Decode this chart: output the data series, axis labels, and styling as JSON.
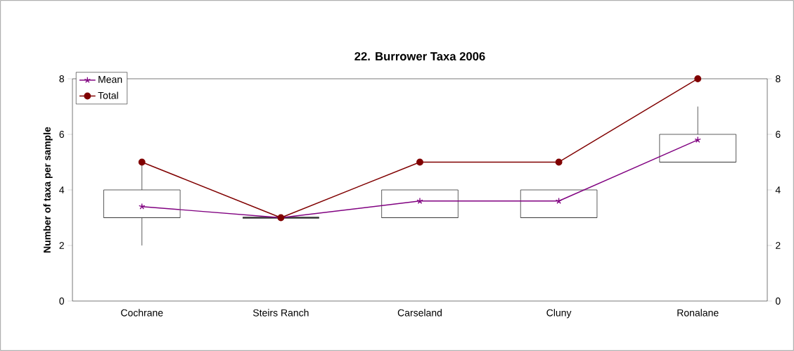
{
  "chart_data": {
    "type": "box",
    "title": "22.  Burrower Taxa 2006",
    "ylabel": "Number of taxa per sample",
    "categories": [
      "Cochrane",
      "Steirs Ranch",
      "Carseland",
      "Cluny",
      "Ronalane"
    ],
    "boxes": [
      {
        "low": 2,
        "q1": 3,
        "median": 3,
        "q3": 4,
        "high": 5
      },
      {
        "low": 3,
        "q1": 3,
        "median": 3,
        "q3": 3,
        "high": 3
      },
      {
        "low": 3,
        "q1": 3,
        "median": 3,
        "q3": 4,
        "high": 4
      },
      {
        "low": 3,
        "q1": 3,
        "median": 3,
        "q3": 4,
        "high": 4
      },
      {
        "low": 5,
        "q1": 5,
        "median": 5,
        "q3": 6,
        "high": 7
      }
    ],
    "series": [
      {
        "name": "Mean",
        "type": "line",
        "color": "#800080",
        "marker": "cross",
        "values": [
          3.4,
          3.0,
          3.6,
          3.6,
          5.8
        ]
      },
      {
        "name": "Total",
        "type": "line",
        "color": "#800000",
        "marker": "circle",
        "values": [
          5,
          3,
          5,
          5,
          8
        ]
      }
    ],
    "ylim": [
      0,
      8
    ],
    "yticks": [
      0,
      2,
      4,
      6,
      8
    ],
    "y2lim": [
      0,
      8
    ],
    "y2ticks": [
      0,
      2,
      4,
      6,
      8
    ],
    "color": "#333333",
    "legend": "top left",
    "grid": false
  }
}
